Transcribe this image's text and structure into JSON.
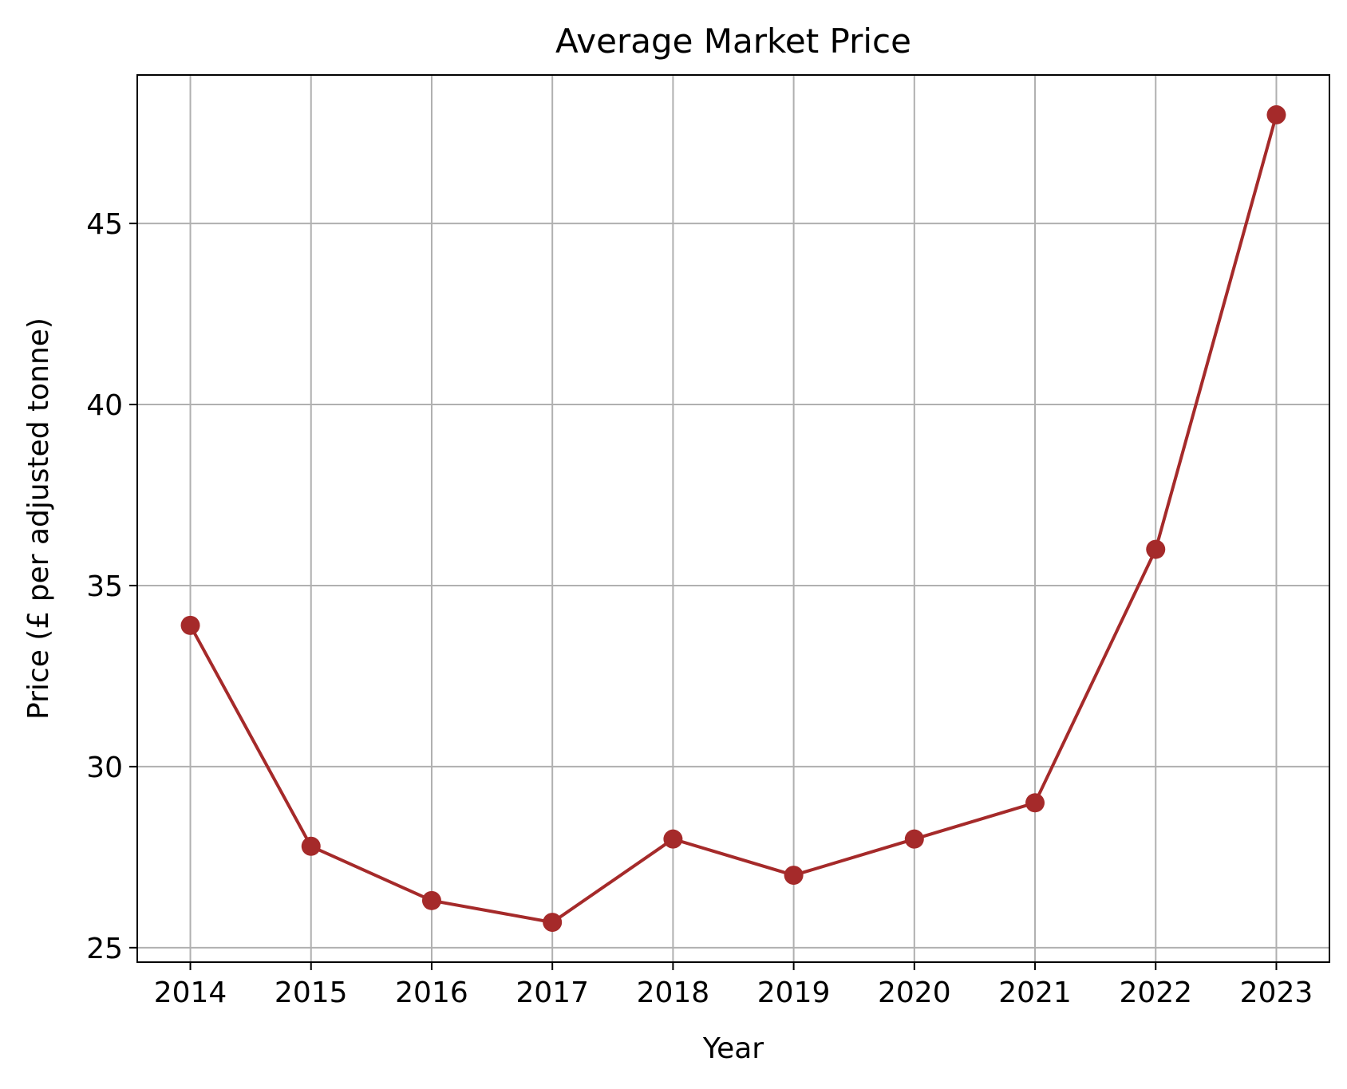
{
  "chart_data": {
    "type": "line",
    "title": "Average Market Price",
    "xlabel": "Year",
    "ylabel": "Price (£ per adjusted tonne)",
    "x": [
      2014,
      2015,
      2016,
      2017,
      2018,
      2019,
      2020,
      2021,
      2022,
      2023
    ],
    "series": [
      {
        "values": [
          33.9,
          27.8,
          26.3,
          25.7,
          28.0,
          27.0,
          28.0,
          29.0,
          36.0,
          48.0
        ],
        "color": "#a52a2a",
        "marker": "circle"
      }
    ],
    "xticks": [
      "2014",
      "2015",
      "2016",
      "2017",
      "2018",
      "2019",
      "2020",
      "2021",
      "2022",
      "2023"
    ],
    "yticks": [
      "25",
      "30",
      "35",
      "40",
      "45"
    ],
    "ytick_values": [
      25,
      30,
      35,
      40,
      45
    ],
    "xlim": [
      2013.56,
      2023.44
    ],
    "ylim": [
      24.6,
      49.1
    ],
    "grid": true,
    "legend": "none"
  }
}
